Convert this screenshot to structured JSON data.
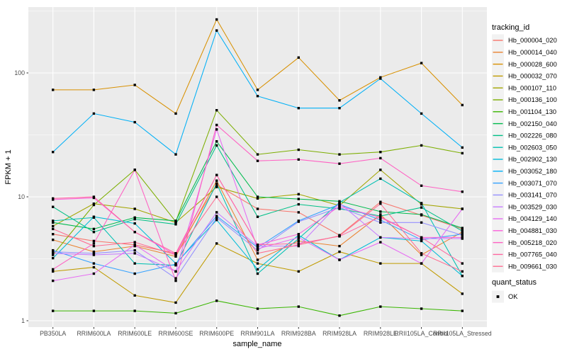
{
  "figure": {
    "kind": "ggplot-style line chart",
    "panel_bg": "#EBEBEB",
    "grid_color": "#FFFFFF",
    "tick_color": "#333333",
    "axis_text_color": "#4D4D4D",
    "title_text_color": "#000000",
    "legend_key_bg": "#F2F2F2",
    "point_color": "#000000"
  },
  "chart_data": {
    "type": "line",
    "xlabel": "sample_name",
    "ylabel": "FPKM + 1",
    "y_scale": "log10",
    "y_ticks": [
      1,
      10,
      100
    ],
    "y_tick_labels": [
      "1",
      "10",
      "100"
    ],
    "ylim": [
      0.89,
      340
    ],
    "grid": "major-and-minor",
    "legend_position": "right",
    "legend_title": "tracking_id",
    "legend2_title": "quant_status",
    "legend2_items": [
      {
        "label": "OK",
        "marker": "filled-square",
        "color": "#000000"
      }
    ],
    "categories": [
      "PB350LA",
      "RRIM600LA",
      "RRIM600LE",
      "RRIM600SE",
      "RRIM600PE",
      "RRIM901LA",
      "RRIM928BA",
      "RRIM928LA",
      "RRIM928LE",
      "RRII105LA_Control",
      "RRII105LA_Stressed"
    ],
    "series": [
      {
        "name": "Hb_000004_020",
        "color": "#F8766D",
        "values": [
          5.0,
          4.4,
          4.1,
          3.5,
          12.5,
          8.0,
          7.5,
          4.9,
          9.1,
          7.1,
          5.5
        ]
      },
      {
        "name": "Hb_000014_040",
        "color": "#EA8331",
        "values": [
          4.5,
          3.6,
          4.0,
          3.3,
          13.5,
          3.1,
          4.4,
          4.0,
          7.2,
          3.4,
          5.2
        ]
      },
      {
        "name": "Hb_000028_600",
        "color": "#D89000",
        "values": [
          73,
          73,
          80,
          47,
          270,
          73,
          133,
          60,
          92,
          120,
          55
        ]
      },
      {
        "name": "Hb_000032_070",
        "color": "#C09B00",
        "values": [
          2.5,
          2.7,
          1.6,
          1.4,
          4.2,
          2.9,
          2.5,
          3.6,
          2.9,
          2.9,
          1.65
        ]
      },
      {
        "name": "Hb_000107_110",
        "color": "#A3A500",
        "values": [
          5.8,
          8.8,
          8.0,
          6.2,
          12.0,
          9.7,
          10.5,
          8.5,
          16.5,
          8.7,
          8.0
        ]
      },
      {
        "name": "Hb_000136_100",
        "color": "#7CAE00",
        "values": [
          3.4,
          8.6,
          16.5,
          6.3,
          50,
          22,
          24,
          22,
          23,
          26,
          22.5
        ]
      },
      {
        "name": "Hb_001104_130",
        "color": "#39B600",
        "values": [
          1.2,
          1.2,
          1.2,
          1.15,
          1.45,
          1.25,
          1.3,
          1.1,
          1.3,
          1.25,
          1.2
        ]
      },
      {
        "name": "Hb_002150_040",
        "color": "#00BB4E",
        "values": [
          6.2,
          5.5,
          6.8,
          6.4,
          28,
          10.0,
          9.6,
          9.2,
          7.6,
          7.2,
          5.6
        ]
      },
      {
        "name": "Hb_002226_080",
        "color": "#00C087",
        "values": [
          8.3,
          5.2,
          6.6,
          6.0,
          26,
          6.9,
          8.7,
          8.0,
          7.0,
          8.2,
          5.3
        ]
      },
      {
        "name": "Hb_002603_050",
        "color": "#00C0B2",
        "values": [
          6.4,
          6.8,
          2.9,
          2.8,
          12.8,
          2.4,
          4.6,
          9.0,
          14.0,
          8.9,
          2.3
        ]
      },
      {
        "name": "Hb_002902_130",
        "color": "#00BCD8",
        "values": [
          3.2,
          6.9,
          6.1,
          2.9,
          6.5,
          2.6,
          4.9,
          3.1,
          4.7,
          4.4,
          2.3
        ]
      },
      {
        "name": "Hb_003052_180",
        "color": "#00B0F6",
        "values": [
          23,
          47,
          40,
          22,
          220,
          65,
          52,
          52,
          90,
          47,
          25
        ]
      },
      {
        "name": "Hb_003071_070",
        "color": "#35A2FF",
        "values": [
          3.7,
          2.9,
          2.4,
          2.86,
          7.0,
          3.9,
          6.4,
          8.7,
          6.5,
          4.5,
          5.0
        ]
      },
      {
        "name": "Hb_003141_070",
        "color": "#9590FF",
        "values": [
          3.6,
          3.5,
          3.7,
          2.2,
          6.8,
          3.7,
          6.3,
          8.2,
          6.2,
          6.2,
          4.9
        ]
      },
      {
        "name": "Hb_003529_030",
        "color": "#C77CFF",
        "values": [
          3.5,
          3.4,
          3.5,
          2.5,
          7.5,
          4.0,
          4.0,
          8.9,
          4.7,
          4.6,
          4.6
        ]
      },
      {
        "name": "Hb_004129_140",
        "color": "#E76BF3",
        "values": [
          2.1,
          2.4,
          4.1,
          2.5,
          35,
          3.8,
          4.7,
          3.1,
          4.3,
          2.9,
          8.0
        ]
      },
      {
        "name": "Hb_004881_030",
        "color": "#FA62DB",
        "values": [
          9.5,
          9.8,
          5.2,
          3.4,
          15.0,
          4.1,
          5.0,
          8.4,
          6.8,
          4.7,
          4.7
        ]
      },
      {
        "name": "Hb_005218_020",
        "color": "#FF61C3",
        "values": [
          2.6,
          4.2,
          16.5,
          2.1,
          38,
          19.5,
          20,
          18.5,
          20.5,
          12.3,
          11.0
        ]
      },
      {
        "name": "Hb_007765_040",
        "color": "#FF68A1",
        "values": [
          9.7,
          10.0,
          5.2,
          3.5,
          15,
          4.1,
          4.2,
          4.8,
          6.9,
          4.7,
          2.9
        ]
      },
      {
        "name": "Hb_009661_030",
        "color": "#FF6C91",
        "values": [
          5.5,
          4.0,
          4.3,
          3.4,
          10,
          3.5,
          4.1,
          4.85,
          8.8,
          3.5,
          2.5
        ]
      }
    ]
  }
}
